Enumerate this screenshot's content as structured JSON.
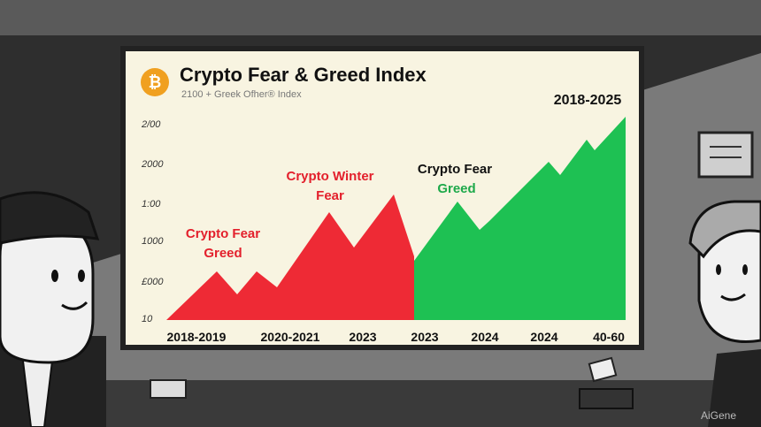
{
  "screen": {
    "icon": "₿",
    "title": "Crypto Fear & Greed Index",
    "subtitle": "2100 + Greek Ofher® Index",
    "range": "2018-2025",
    "y_axis_labels": [
      "2/00",
      "2000",
      "1:00",
      "1000",
      "£000",
      "10"
    ],
    "x_axis_labels": [
      "2018-2019",
      "2020-2021",
      "2023",
      "2023",
      "2024",
      "2024",
      "40-60"
    ],
    "annotations": [
      {
        "lines": [
          "Crypto Fear",
          "Greed"
        ]
      },
      {
        "lines": [
          "Crypto Winter",
          "Fear"
        ]
      },
      {
        "lines": [
          "Crypto Fear",
          "Greed"
        ]
      }
    ]
  },
  "watermark": "AiGene"
}
